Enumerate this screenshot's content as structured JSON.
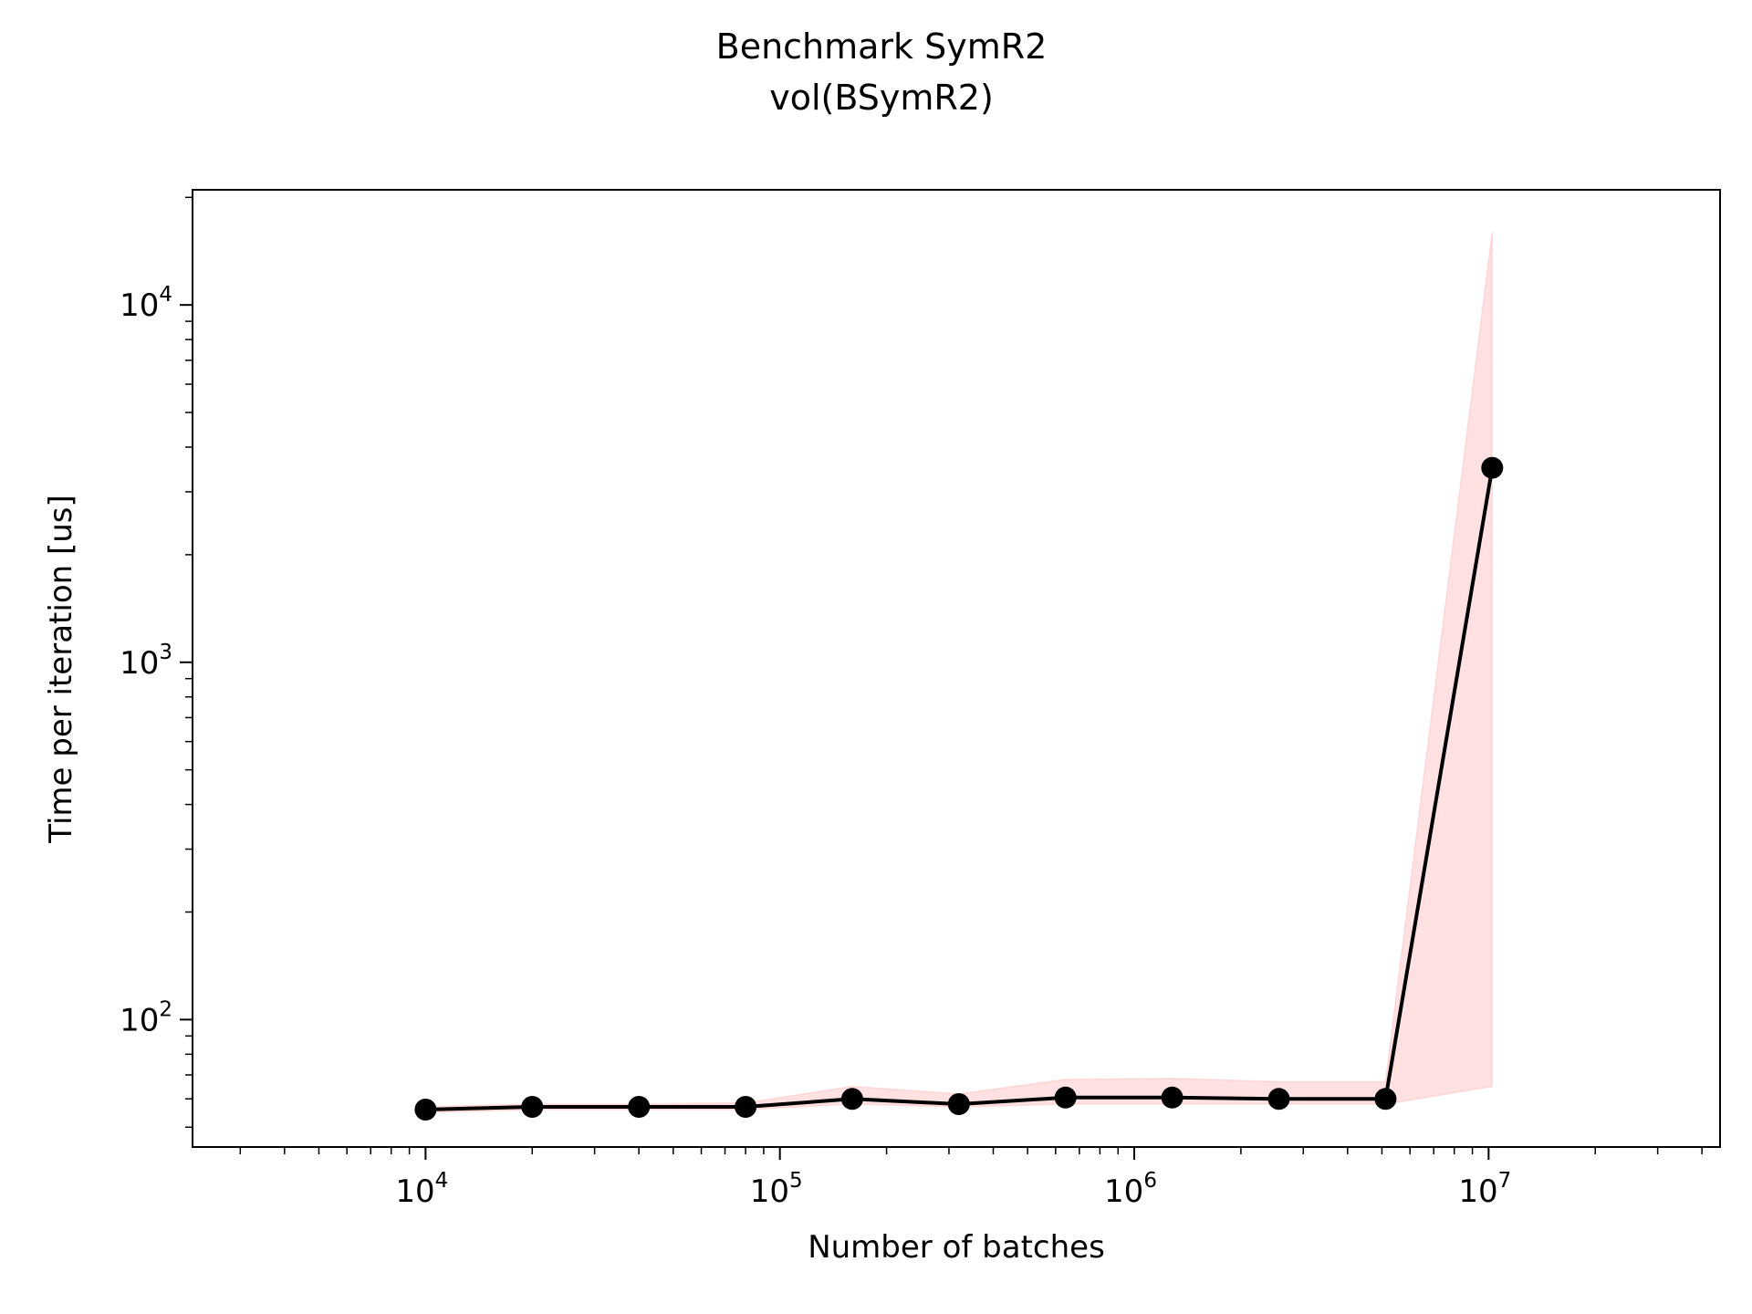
{
  "chart_data": {
    "type": "line",
    "title": "Benchmark SymR2",
    "subtitle": "vol(BSymR2)",
    "xlabel": "Number of batches",
    "ylabel": "Time per iteration [us]",
    "xscale": "log",
    "yscale": "log",
    "xlim": [
      2200,
      45000000
    ],
    "ylim": [
      44,
      21000
    ],
    "x_ticks": [
      {
        "base": "10",
        "exp": "4",
        "value": 10000
      },
      {
        "base": "10",
        "exp": "5",
        "value": 100000
      },
      {
        "base": "10",
        "exp": "6",
        "value": 1000000
      },
      {
        "base": "10",
        "exp": "7",
        "value": 10000000
      }
    ],
    "y_ticks": [
      {
        "base": "10",
        "exp": "2",
        "value": 100
      },
      {
        "base": "10",
        "exp": "3",
        "value": 1000
      },
      {
        "base": "10",
        "exp": "4",
        "value": 10000
      }
    ],
    "grid": false,
    "series": [
      {
        "color": "#000000",
        "band_color": "#ffb3b3",
        "x": [
          10000,
          20000,
          40000,
          80000,
          160000,
          320000,
          640000,
          1280000,
          2560000,
          5120000,
          10240000
        ],
        "values": [
          56,
          57,
          57,
          57,
          60,
          58,
          60.5,
          60.5,
          60,
          60,
          3500
        ],
        "band_low": [
          55,
          56,
          56,
          56,
          58,
          57,
          58,
          58,
          58,
          58,
          65
        ],
        "band_high": [
          57,
          58,
          58,
          58.5,
          65,
          62,
          68,
          68.5,
          67,
          67,
          16000
        ]
      }
    ]
  }
}
